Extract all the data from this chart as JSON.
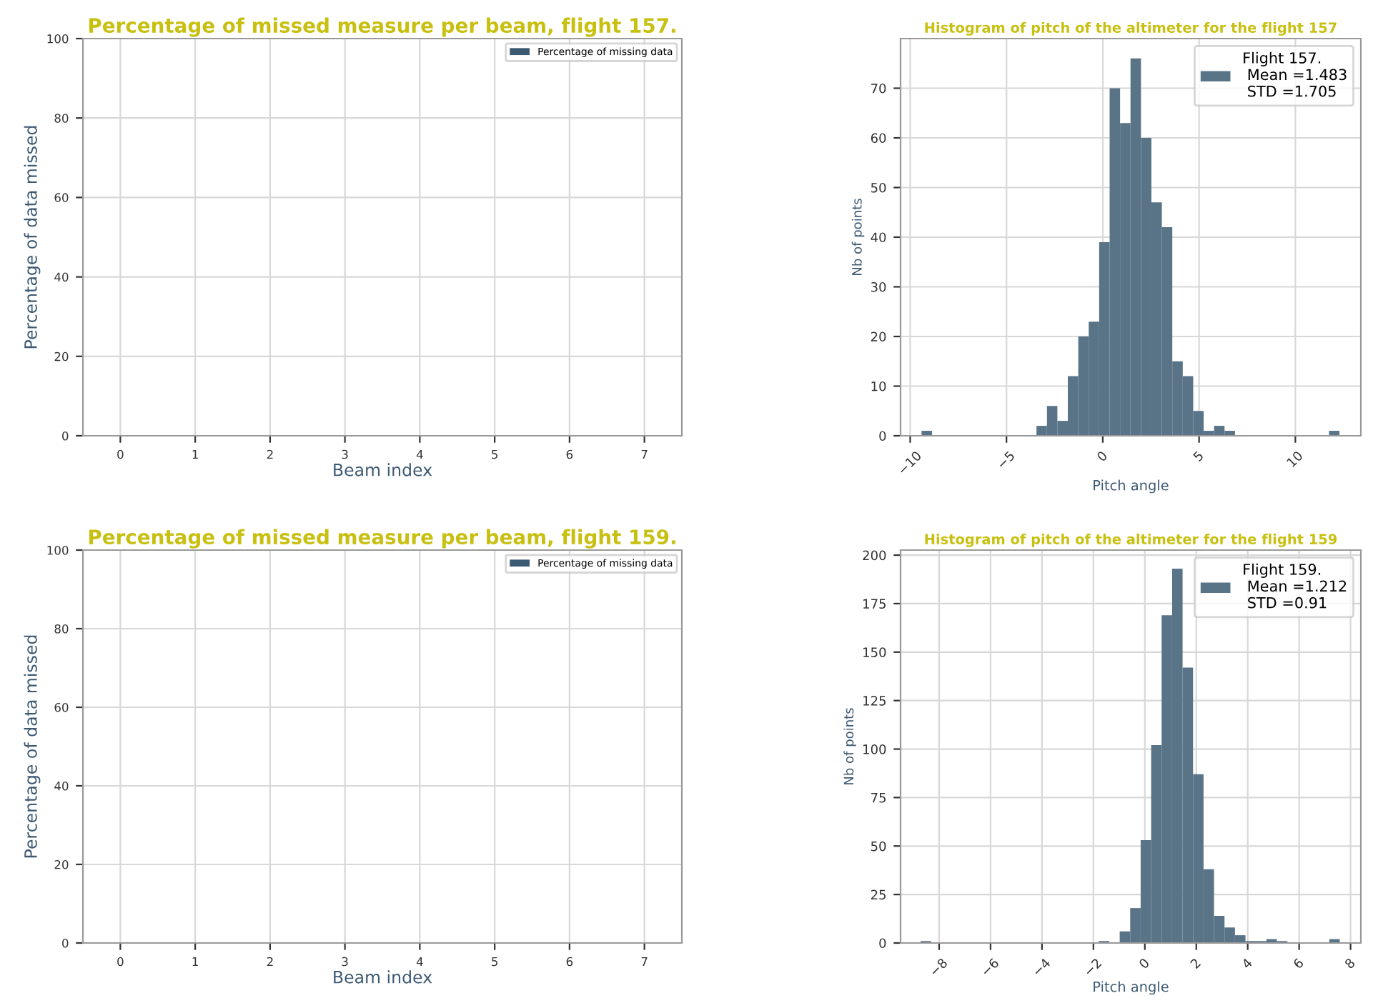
{
  "chart_data": [
    {
      "type": "bar",
      "title": "Percentage of missed measure per beam, flight 157.",
      "xlabel": "Beam index",
      "ylabel": "Percentage of data missed",
      "categories": [
        "0",
        "1",
        "2",
        "3",
        "4",
        "5",
        "6",
        "7"
      ],
      "series": [
        {
          "name": "Percentage of missing data",
          "color": "#3d5a73",
          "values": [
            0,
            0,
            0,
            0,
            0,
            0,
            0,
            0
          ]
        }
      ],
      "ylim": [
        0,
        100
      ],
      "yticks": [
        0,
        20,
        40,
        60,
        80,
        100
      ],
      "grid": true,
      "legend": "top right"
    },
    {
      "type": "histogram",
      "title": "Histogram of pitch of the altimeter for the flight 157",
      "xlabel": "Pitch angle",
      "ylabel": "Nb of points",
      "bins": [
        -9.41,
        -8.868,
        -8.325,
        -7.783,
        -7.24,
        -6.698,
        -6.155,
        -5.613,
        -5.07,
        -4.528,
        -3.985,
        -3.443,
        -2.9,
        -2.358,
        -1.815,
        -1.273,
        -0.73,
        -0.188,
        0.355,
        0.898,
        1.44,
        1.983,
        2.525,
        3.068,
        3.61,
        4.153,
        4.695,
        5.238,
        5.78,
        6.323,
        6.865,
        7.408,
        7.95,
        8.493,
        9.035,
        9.578,
        10.12,
        10.663,
        11.205,
        11.748,
        12.29
      ],
      "series": [
        {
          "name": "Flight 157.\n Mean =1.483\n STD =1.705",
          "color": "#597387",
          "values": [
            1,
            0,
            0,
            0,
            0,
            0,
            0,
            0,
            0,
            0,
            0,
            2,
            6,
            3,
            12,
            20,
            23,
            39,
            70,
            63,
            76,
            60,
            47,
            42,
            15,
            12,
            5,
            1,
            2,
            1,
            0,
            0,
            0,
            0,
            0,
            0,
            0,
            0,
            0,
            1
          ]
        }
      ],
      "xlim": [
        -10.5,
        13.4
      ],
      "xticks": [
        {
          "value": -10,
          "label": "−10"
        },
        {
          "value": -5,
          "label": "−5"
        },
        0,
        5,
        10
      ],
      "ylim": [
        0,
        80
      ],
      "yticks": [
        0,
        10,
        20,
        30,
        40,
        50,
        60,
        70
      ],
      "grid": true,
      "legend": "top right"
    },
    {
      "type": "bar",
      "title": "Percentage of missed measure per beam, flight 159.",
      "xlabel": "Beam index",
      "ylabel": "Percentage of data missed",
      "categories": [
        "0",
        "1",
        "2",
        "3",
        "4",
        "5",
        "6",
        "7"
      ],
      "series": [
        {
          "name": "Percentage of missing data",
          "color": "#3d5a73",
          "values": [
            0,
            0,
            0,
            0,
            0,
            0,
            0,
            0
          ]
        }
      ],
      "ylim": [
        0,
        100
      ],
      "yticks": [
        0,
        20,
        40,
        60,
        80,
        100
      ],
      "grid": true,
      "legend": "top right"
    },
    {
      "type": "histogram",
      "title": "Histogram of pitch of the altimeter for the flight 159",
      "xlabel": "Pitch angle",
      "ylabel": "Nb of points",
      "bins": [
        -8.72,
        -8.313,
        -7.905,
        -7.498,
        -7.09,
        -6.683,
        -6.275,
        -5.868,
        -5.46,
        -5.053,
        -4.645,
        -4.238,
        -3.83,
        -3.423,
        -3.015,
        -2.608,
        -2.2,
        -1.793,
        -1.385,
        -0.978,
        -0.57,
        -0.163,
        0.245,
        0.653,
        1.06,
        1.468,
        1.875,
        2.283,
        2.69,
        3.098,
        3.505,
        3.913,
        4.32,
        4.728,
        5.135,
        5.543,
        5.95,
        6.358,
        6.765,
        7.173,
        7.58
      ],
      "series": [
        {
          "name": "Flight 159.\n Mean =1.212\n STD =0.91",
          "color": "#597387",
          "values": [
            1,
            0,
            0,
            0,
            0,
            0,
            0,
            0,
            0,
            0,
            0,
            0,
            0,
            0,
            0,
            0,
            0,
            1,
            0,
            6,
            18,
            53,
            102,
            169,
            193,
            142,
            87,
            38,
            14,
            8,
            4,
            1,
            1,
            2,
            1,
            0,
            0,
            0,
            0,
            2
          ]
        }
      ],
      "xlim": [
        -9.5,
        8.4
      ],
      "xticks": [
        {
          "value": -8,
          "label": "−8"
        },
        {
          "value": -6,
          "label": "−6"
        },
        {
          "value": -4,
          "label": "−4"
        },
        {
          "value": -2,
          "label": "−2"
        },
        0,
        2,
        4,
        6,
        8
      ],
      "ylim": [
        0,
        202.6
      ],
      "yticks": [
        0,
        25,
        50,
        75,
        100,
        125,
        150,
        175,
        200
      ],
      "grid": true,
      "legend": "top right"
    }
  ]
}
